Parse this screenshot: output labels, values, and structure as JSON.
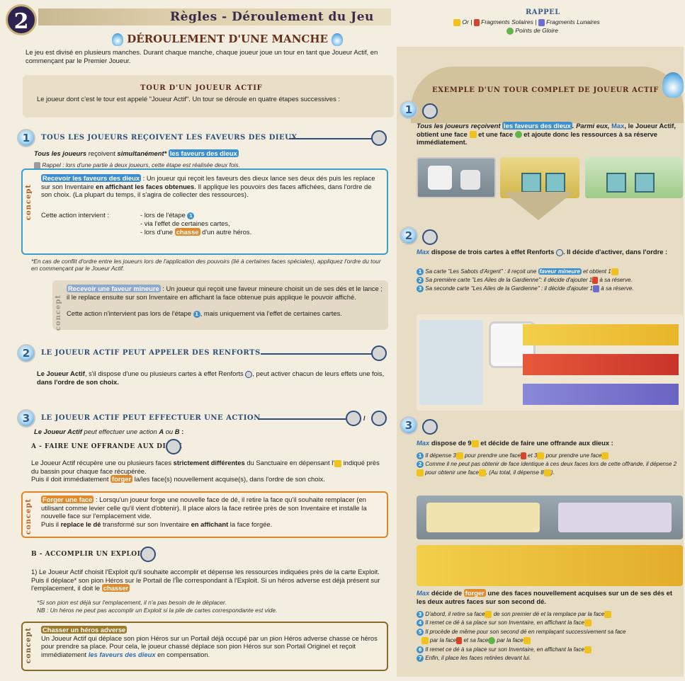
{
  "page_badge": "2",
  "header": {
    "title": "Règles - Déroulement du Jeu"
  },
  "manche": {
    "title": "Déroulement d'une manche",
    "intro": "Le jeu est divisé en plusieurs manches. Durant chaque manche, chaque joueur joue un tour en tant que Joueur Actif, en commençant par le Premier Joueur."
  },
  "tour": {
    "title": "Tour d'un joueur actif",
    "intro": "Le joueur dont c'est le tour est appelé \"Joueur Actif\". Un tour se déroule en quatre étapes successives :"
  },
  "step1": {
    "num": "1",
    "title": "Tous les joueurs reçoivent les faveurs des dieux",
    "line_a": "Tous les joueurs",
    "line_b": " reçoivent ",
    "line_c": "simultanément*",
    "line_d": "les faveurs des dieux",
    "rappel": "Rappel : lors d'une partie à deux joueurs, cette étape est réalisée deux fois.",
    "concept_tag": "concept",
    "concept_hl": "Recevoir les faveurs des dieux",
    "concept_p1a": " : Un joueur qui reçoit les faveurs des dieux lance ses deux dés puis les replace sur son Inventaire ",
    "concept_p1b": "en affichant les faces obtenues",
    "concept_p1c": ". Il applique les pouvoirs des faces affichées, dans l'ordre de son choix. (La plupart du temps, il s'agira de collecter des ressources).",
    "action_label": "Cette action intervient :",
    "action_l1": "- lors de l'étape",
    "action_l2": "- via l'effet de certaines cartes,",
    "action_l3a": "- lors d'une ",
    "action_l3b": "chasse",
    "action_l3c": " d'un autre héros.",
    "footnote": "*En cas de conflit d'ordre entre les joueurs lors de l'application des pouvoirs (lié à certaines faces spéciales), appliquez l'ordre du tour en commençant par le Joueur Actif.",
    "minor_tag": "concept",
    "minor_hl": "Recevoir une faveur mineure",
    "minor_p1": " : Un joueur qui reçoit une faveur mineure choisit un de ses dés et le lance ; il le replace ensuite sur son Inventaire en affichant la face obtenue puis applique le pouvoir affiché.",
    "minor_p2a": "Cette action n'intervient pas lors de l'étape",
    "minor_p2b": ", mais uniquement via l'effet de certaines cartes."
  },
  "step2": {
    "num": "2",
    "title": "Le joueur actif peut appeler des renforts",
    "p_a": "Le Joueur Actif",
    "p_b": ", s'il dispose d'une ou plusieurs cartes à effet Renforts",
    "p_c": ", peut activer chacun de leurs effets une fois, ",
    "p_d": "dans l'ordre de son choix."
  },
  "step3": {
    "num": "3",
    "title": "Le joueur actif peut effectuer une action",
    "slash": "/",
    "lead_a": "Le Joueur Actif",
    "lead_b": " peut effectuer une action ",
    "lead_c": "A",
    "lead_d": " ou ",
    "lead_e": "B",
    "lead_f": " :",
    "a_head": "A - Faire une offrande aux dieux",
    "a_p1a": "Le Joueur Actif récupère une ou plusieurs faces ",
    "a_p1b": "strictement différentes",
    "a_p1c": " du Sanctuaire en dépensant l'",
    "a_p1d": " indiqué près du bassin pour chaque face récupérée.",
    "a_p2a": "Puis il doit immédiatement ",
    "a_p2b": "forger",
    "a_p2c": " la/les face(s) nouvellement acquise(s), dans l'ordre de son choix.",
    "forge_tag": "concept",
    "forge_hl": "Forger une face",
    "forge_p": " : Lorsqu'un joueur forge une nouvelle face de dé, il retire la face qu'il souhaite remplacer (en utilisant comme levier celle qu'il vient d'obtenir). Il place alors la face retirée près de son Inventaire et installe la nouvelle face sur l'emplacement vide.",
    "forge_p2a": "Puis il ",
    "forge_p2b": "replace le dé",
    "forge_p2c": " transformé sur son Inventaire ",
    "forge_p2d": "en affichant",
    "forge_p2e": " la face forgée.",
    "b_head": "B - Accomplir un exploit",
    "b_p1": "1) Le Joueur Actif choisit l'Exploit qu'il souhaite accomplir et dépense les ressources indiquées près de la carte Exploit. Puis il déplace* son pion Héros sur le Portail de l'Île correspondant à l'Exploit. Si un héros adverse est déjà présent sur l'emplacement, il doit le ",
    "b_p1_hl": "chasser",
    "b_note1": "*Si son pion est déjà sur l'emplacement, il n'a pas besoin de le déplacer.",
    "b_note2": "NB : Un héros ne peut pas accomplir un Exploit si la pile de cartes correspondante est vide.",
    "chasse_tag": "concept",
    "chasse_hl": "Chasser un héros adverse",
    "chasse_p": "Un Joueur Actif qui déplace son pion Héros sur un Portail déjà occupé par un pion Héros adverse chasse ce héros pour prendre sa place. Pour cela, le joueur chassé déplace son pion Héros sur son Portail Originel et reçoit immédiatement ",
    "chasse_p_em": "les faveurs des dieux",
    "chasse_p_end": " en compensation."
  },
  "rappel": {
    "title": "Rappel",
    "line1": "Or | ",
    "line1b": "Fragments Solaires | ",
    "line1c": "Fragments Lunaires",
    "line2": "Points de Gloire"
  },
  "example": {
    "title": "Exemple d'un tour complet de Joueur Actif",
    "s1_a": "Tous les joueurs reçoivent ",
    "s1_hl": "les faveurs des dieux",
    "s1_b": ". Parmi eux, ",
    "s1_max": "Max",
    "s1_c": ", le Joueur Actif, obtient une face ",
    "s1_d": " et une face ",
    "s1_e": " et ajoute donc les ressources à sa réserve immédiatement.",
    "s2_a": "Max",
    "s2_b": " dispose de trois cartes à effet Renforts",
    "s2_c": ". Il décide d'activer, dans l'ordre :",
    "s2_l1a": "Sa carte \"Les Sabots d'Argent\" : il reçoit une ",
    "s2_l1hl": "faveur mineure",
    "s2_l1b": " et obtient 1",
    "s2_l2": "Sa première carte \"Les Ailes de la Gardienne\": il décide d'ajouter 1",
    "s2_l2b": " à sa réserve.",
    "s2_l3": "Sa seconde carte \"Les Ailes de la Gardienne\" : il décide d'ajouter 1",
    "s2_l3b": " à sa réserve.",
    "s3_a": "Max",
    "s3_b": " dispose de 9",
    "s3_c": " et décide de faire une offrande aux dieux :",
    "s3_l1a": "Il dépense 3",
    "s3_l1b": " pour prendre une face",
    "s3_l1c": " et 3",
    "s3_l1d": " pour prendre une face",
    "s3_l2a": "Comme il ne peut pas obtenir de face identique à ces deux faces lors de cette offrande, il dépense 2",
    "s3_l2b": " pour obtenir une face",
    "s3_l2c": ". (Au total, il dépense 8",
    "s3_l2d": ").",
    "s4_a": "Max",
    "s4_b": " décide de ",
    "s4_hl": "forger",
    "s4_c": " une des faces nouvellement acquises sur un de ses dés et les deux autres faces sur son second dé.",
    "f1a": "D'abord, il retire sa face",
    "f1b": " de son premier dé et la remplace par la face",
    "f2": "Il remet ce dé à sa place sur son Inventaire, en affichant la face",
    "f3": "Il procède de même pour son second dé en remplaçant successivement sa face",
    "f3b": " par la face",
    "f3c": " et sa face",
    "f3d": " par la face",
    "f4": "Il remet ce dé à sa place sur son Inventaire, en affichant la face",
    "f5": "Enfin, il place les faces retirées devant lui.",
    "n1": "1",
    "n2": "2",
    "n3": "3",
    "n4": "4",
    "n5": "5",
    "n6": "6",
    "n7": "7"
  }
}
